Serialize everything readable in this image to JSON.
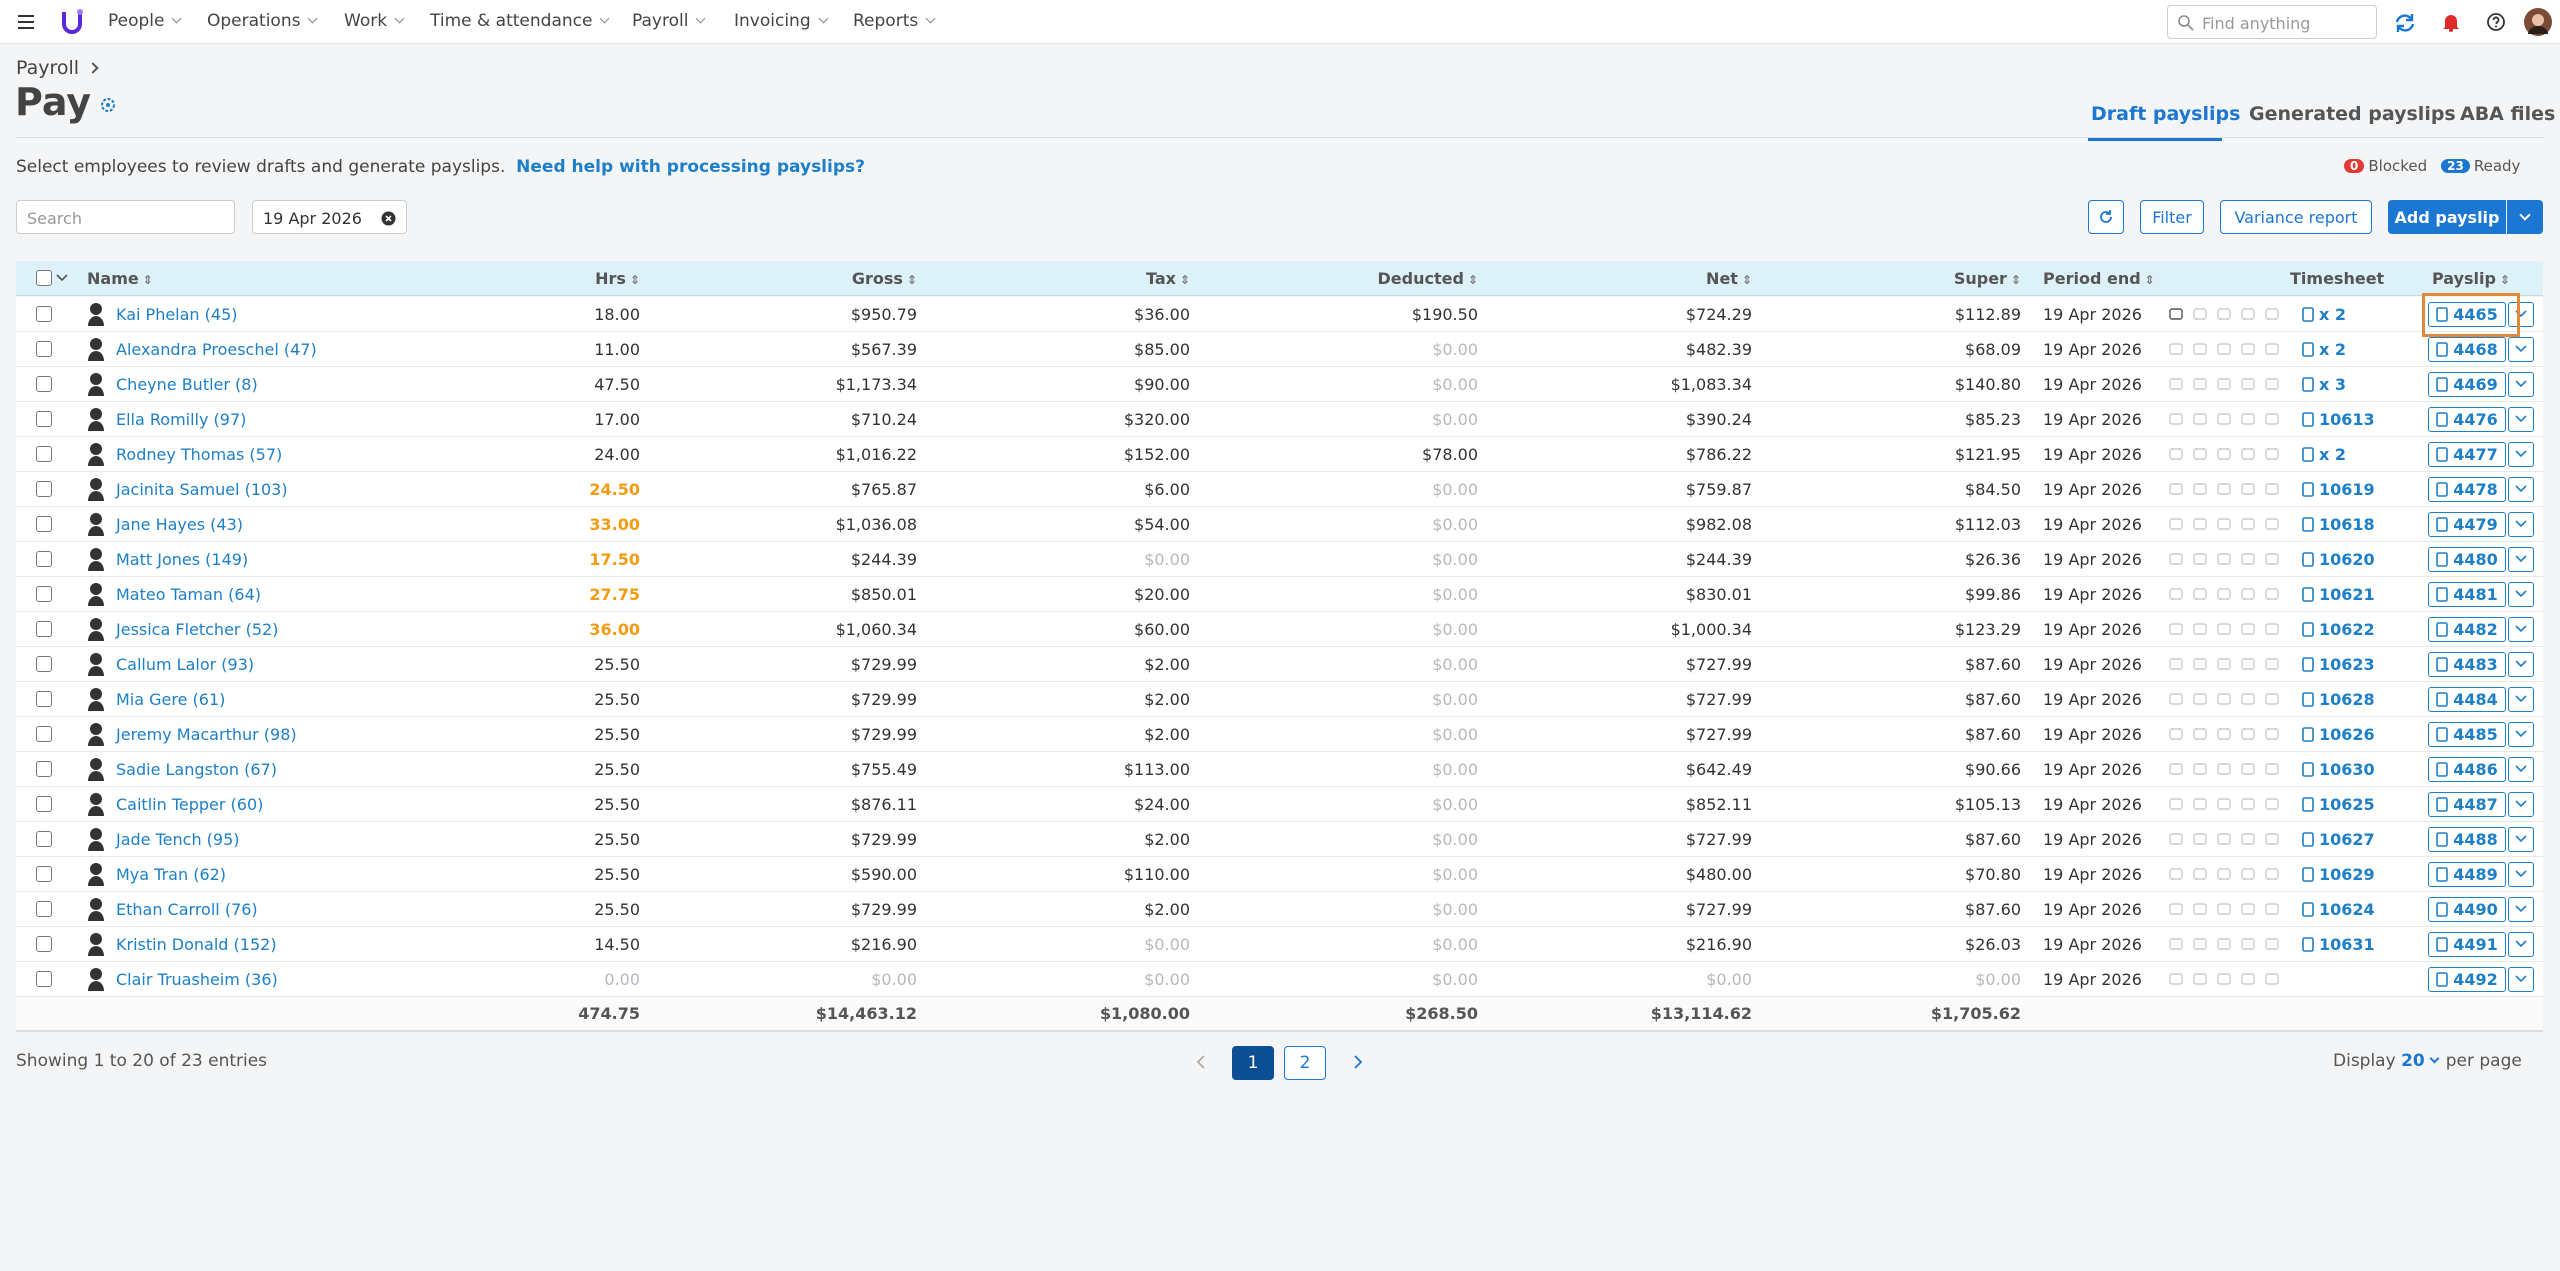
{
  "nav": {
    "items": [
      "People",
      "Operations",
      "Work",
      "Time & attendance",
      "Payroll",
      "Invoicing",
      "Reports"
    ],
    "search_placeholder": "Find anything"
  },
  "header": {
    "breadcrumb": "Payroll",
    "title": "Pay",
    "tabs": [
      "Draft payslips",
      "Generated payslips",
      "ABA files"
    ]
  },
  "intro": {
    "text": "Select employees to review drafts and generate payslips.",
    "help_link": "Need help with processing payslips?"
  },
  "status": {
    "blocked_count": "0",
    "blocked_label": "Blocked",
    "ready_count": "23",
    "ready_label": "Ready"
  },
  "toolbar": {
    "search_placeholder": "Search",
    "date": "19 Apr 2026",
    "buttons": [
      "Filter",
      "Variance report",
      "Add payslip"
    ]
  },
  "table": {
    "columns": [
      "Name",
      "Hrs",
      "Gross",
      "Tax",
      "Deducted",
      "Net",
      "Super",
      "Period end",
      "Timesheet",
      "Payslip"
    ],
    "rows": [
      {
        "name": "Kai Phelan (45)",
        "hrs": "18.00",
        "gross": "$950.79",
        "tax": "$36.00",
        "deducted": "$190.50",
        "net": "$724.29",
        "super": "$112.89",
        "period_end": "19 Apr 2026",
        "timesheet": "x 2",
        "payslip": "4465"
      },
      {
        "name": "Alexandra Proeschel (47)",
        "hrs": "11.00",
        "gross": "$567.39",
        "tax": "$85.00",
        "deducted": "$0.00",
        "net": "$482.39",
        "super": "$68.09",
        "period_end": "19 Apr 2026",
        "timesheet": "x 2",
        "payslip": "4468"
      },
      {
        "name": "Cheyne Butler (8)",
        "hrs": "47.50",
        "gross": "$1,173.34",
        "tax": "$90.00",
        "deducted": "$0.00",
        "net": "$1,083.34",
        "super": "$140.80",
        "period_end": "19 Apr 2026",
        "timesheet": "x 3",
        "payslip": "4469"
      },
      {
        "name": "Ella Romilly (97)",
        "hrs": "17.00",
        "gross": "$710.24",
        "tax": "$320.00",
        "deducted": "$0.00",
        "net": "$390.24",
        "super": "$85.23",
        "period_end": "19 Apr 2026",
        "timesheet": "10613",
        "payslip": "4476"
      },
      {
        "name": "Rodney Thomas (57)",
        "hrs": "24.00",
        "gross": "$1,016.22",
        "tax": "$152.00",
        "deducted": "$78.00",
        "net": "$786.22",
        "super": "$121.95",
        "period_end": "19 Apr 2026",
        "timesheet": "x 2",
        "payslip": "4477"
      },
      {
        "name": "Jacinita Samuel (103)",
        "hrs": "24.50",
        "warn": true,
        "gross": "$765.87",
        "tax": "$6.00",
        "deducted": "$0.00",
        "net": "$759.87",
        "super": "$84.50",
        "period_end": "19 Apr 2026",
        "timesheet": "10619",
        "payslip": "4478"
      },
      {
        "name": "Jane Hayes (43)",
        "hrs": "33.00",
        "warn": true,
        "gross": "$1,036.08",
        "tax": "$54.00",
        "deducted": "$0.00",
        "net": "$982.08",
        "super": "$112.03",
        "period_end": "19 Apr 2026",
        "timesheet": "10618",
        "payslip": "4479"
      },
      {
        "name": "Matt Jones (149)",
        "hrs": "17.50",
        "warn": true,
        "gross": "$244.39",
        "tax": "$0.00",
        "deducted": "$0.00",
        "net": "$244.39",
        "super": "$26.36",
        "period_end": "19 Apr 2026",
        "timesheet": "10620",
        "payslip": "4480"
      },
      {
        "name": "Mateo Taman (64)",
        "hrs": "27.75",
        "warn": true,
        "gross": "$850.01",
        "tax": "$20.00",
        "deducted": "$0.00",
        "net": "$830.01",
        "super": "$99.86",
        "period_end": "19 Apr 2026",
        "timesheet": "10621",
        "payslip": "4481"
      },
      {
        "name": "Jessica Fletcher (52)",
        "hrs": "36.00",
        "warn": true,
        "gross": "$1,060.34",
        "tax": "$60.00",
        "deducted": "$0.00",
        "net": "$1,000.34",
        "super": "$123.29",
        "period_end": "19 Apr 2026",
        "timesheet": "10622",
        "payslip": "4482"
      },
      {
        "name": "Callum Lalor (93)",
        "hrs": "25.50",
        "gross": "$729.99",
        "tax": "$2.00",
        "deducted": "$0.00",
        "net": "$727.99",
        "super": "$87.60",
        "period_end": "19 Apr 2026",
        "timesheet": "10623",
        "payslip": "4483"
      },
      {
        "name": "Mia Gere (61)",
        "hrs": "25.50",
        "gross": "$729.99",
        "tax": "$2.00",
        "deducted": "$0.00",
        "net": "$727.99",
        "super": "$87.60",
        "period_end": "19 Apr 2026",
        "timesheet": "10628",
        "payslip": "4484"
      },
      {
        "name": "Jeremy Macarthur (98)",
        "hrs": "25.50",
        "gross": "$729.99",
        "tax": "$2.00",
        "deducted": "$0.00",
        "net": "$727.99",
        "super": "$87.60",
        "period_end": "19 Apr 2026",
        "timesheet": "10626",
        "payslip": "4485"
      },
      {
        "name": "Sadie Langston (67)",
        "hrs": "25.50",
        "gross": "$755.49",
        "tax": "$113.00",
        "deducted": "$0.00",
        "net": "$642.49",
        "super": "$90.66",
        "period_end": "19 Apr 2026",
        "timesheet": "10630",
        "payslip": "4486"
      },
      {
        "name": "Caitlin Tepper (60)",
        "hrs": "25.50",
        "gross": "$876.11",
        "tax": "$24.00",
        "deducted": "$0.00",
        "net": "$852.11",
        "super": "$105.13",
        "period_end": "19 Apr 2026",
        "timesheet": "10625",
        "payslip": "4487"
      },
      {
        "name": "Jade Tench (95)",
        "hrs": "25.50",
        "gross": "$729.99",
        "tax": "$2.00",
        "deducted": "$0.00",
        "net": "$727.99",
        "super": "$87.60",
        "period_end": "19 Apr 2026",
        "timesheet": "10627",
        "payslip": "4488"
      },
      {
        "name": "Mya Tran (62)",
        "hrs": "25.50",
        "gross": "$590.00",
        "tax": "$110.00",
        "deducted": "$0.00",
        "net": "$480.00",
        "super": "$70.80",
        "period_end": "19 Apr 2026",
        "timesheet": "10629",
        "payslip": "4489"
      },
      {
        "name": "Ethan Carroll (76)",
        "hrs": "25.50",
        "gross": "$729.99",
        "tax": "$2.00",
        "deducted": "$0.00",
        "net": "$727.99",
        "super": "$87.60",
        "period_end": "19 Apr 2026",
        "timesheet": "10624",
        "payslip": "4490"
      },
      {
        "name": "Kristin Donald (152)",
        "hrs": "14.50",
        "gross": "$216.90",
        "tax": "$0.00",
        "deducted": "$0.00",
        "net": "$216.90",
        "super": "$26.03",
        "period_end": "19 Apr 2026",
        "timesheet": "10631",
        "payslip": "4491"
      },
      {
        "name": "Clair Truasheim (36)",
        "hrs": "0.00",
        "gross": "$0.00",
        "tax": "$0.00",
        "deducted": "$0.00",
        "net": "$0.00",
        "super": "$0.00",
        "period_end": "19 Apr 2026",
        "payslip": "4492"
      }
    ],
    "totals": {
      "hrs": "474.75",
      "gross": "$14,463.12",
      "tax": "$1,080.00",
      "deducted": "$268.50",
      "net": "$13,114.62",
      "super": "$1,705.62"
    }
  },
  "footer": {
    "showing": "Showing 1 to 20 of 23 entries",
    "pages": [
      "1",
      "2"
    ],
    "display_label": "Display",
    "page_size": "20",
    "per_page": "per page"
  }
}
